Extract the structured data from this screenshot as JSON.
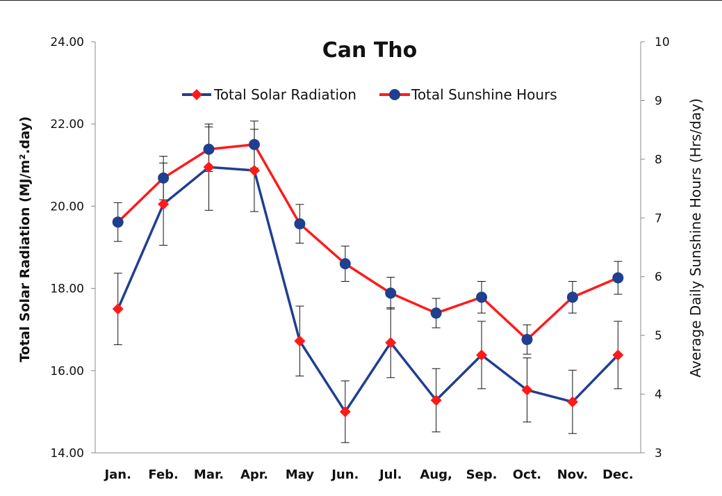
{
  "chart_data": {
    "type": "line",
    "title": "Can Tho",
    "categories": [
      "Jan.",
      "Feb.",
      "Mar.",
      "Apr.",
      "May",
      "Jun.",
      "Jul.",
      "Aug,",
      "Sep.",
      "Oct.",
      "Nov.",
      "Dec."
    ],
    "ylabel_left": "Total Solar Radiation (MJ/m².day)",
    "ylabel_right": "Average Daily Sunshine Hours (Hrs/day)",
    "y_left": {
      "min": 14,
      "max": 24,
      "ticks": [
        "14.00",
        "16.00",
        "18.00",
        "20.00",
        "22.00",
        "24.00"
      ]
    },
    "y_right": {
      "min": 3,
      "max": 10,
      "ticks": [
        "3",
        "4",
        "5",
        "6",
        "7",
        "8",
        "9",
        "10"
      ]
    },
    "legend_position": "top-center",
    "series": [
      {
        "name": "Total Solar Radiation",
        "axis": "left",
        "line_color": "#1f3f8f",
        "marker": "diamond",
        "marker_color": "#ff1a1a",
        "values": [
          17.5,
          20.05,
          20.95,
          20.87,
          16.72,
          15.0,
          16.68,
          15.28,
          16.38,
          15.53,
          15.24,
          16.38
        ],
        "error": [
          0.87,
          1.0,
          1.05,
          1.0,
          0.85,
          0.75,
          0.85,
          0.77,
          0.82,
          0.78,
          0.77,
          0.82
        ]
      },
      {
        "name": "Total Sunshine Hours",
        "axis": "right",
        "line_color": "#ff1a1a",
        "marker": "circle",
        "marker_color": "#1f3f8f",
        "values": [
          6.93,
          7.68,
          8.17,
          8.25,
          6.9,
          6.22,
          5.72,
          5.38,
          5.65,
          4.93,
          5.65,
          5.98
        ],
        "error": [
          0.33,
          0.37,
          0.38,
          0.4,
          0.33,
          0.3,
          0.27,
          0.25,
          0.27,
          0.25,
          0.27,
          0.28
        ]
      }
    ]
  }
}
